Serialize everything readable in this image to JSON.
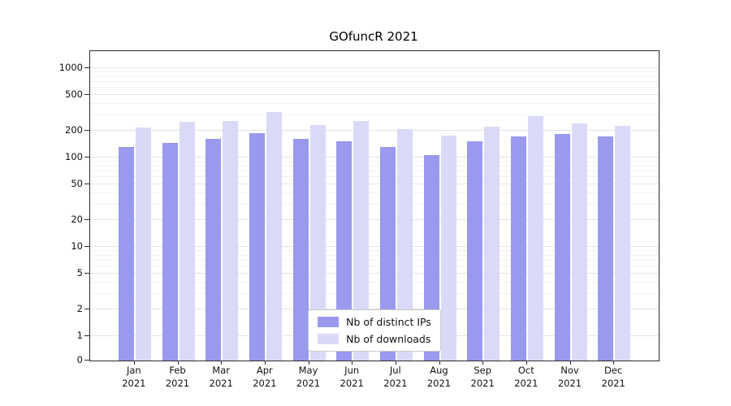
{
  "chart_data": {
    "type": "bar",
    "title": "GOfuncR 2021",
    "categories": [
      "Jan",
      "Feb",
      "Mar",
      "Apr",
      "May",
      "Jun",
      "Jul",
      "Aug",
      "Sep",
      "Oct",
      "Nov",
      "Dec"
    ],
    "x_year_label": "2021",
    "series": [
      {
        "name": "Nb of distinct IPs",
        "color": "#9999ee",
        "values": [
          131,
          146,
          162,
          186,
          161,
          151,
          132,
          106,
          152,
          172,
          183,
          172
        ]
      },
      {
        "name": "Nb of downloads",
        "color": "#dadaf8",
        "values": [
          219,
          251,
          258,
          326,
          232,
          257,
          207,
          176,
          222,
          289,
          242,
          224
        ]
      }
    ],
    "yscale": "log-like (symlog with 0 baseline)",
    "yticks": [
      0,
      1,
      2,
      5,
      10,
      20,
      50,
      100,
      200,
      500,
      1000
    ],
    "ylim": [
      0,
      1000
    ],
    "grid": true,
    "legend_position": "bottom-center inside plot",
    "colors": {
      "spine": "#2b2b2b",
      "grid_major": "#e4e4e4",
      "grid_minor": "#f2f2f2",
      "background": "#ffffff"
    }
  }
}
